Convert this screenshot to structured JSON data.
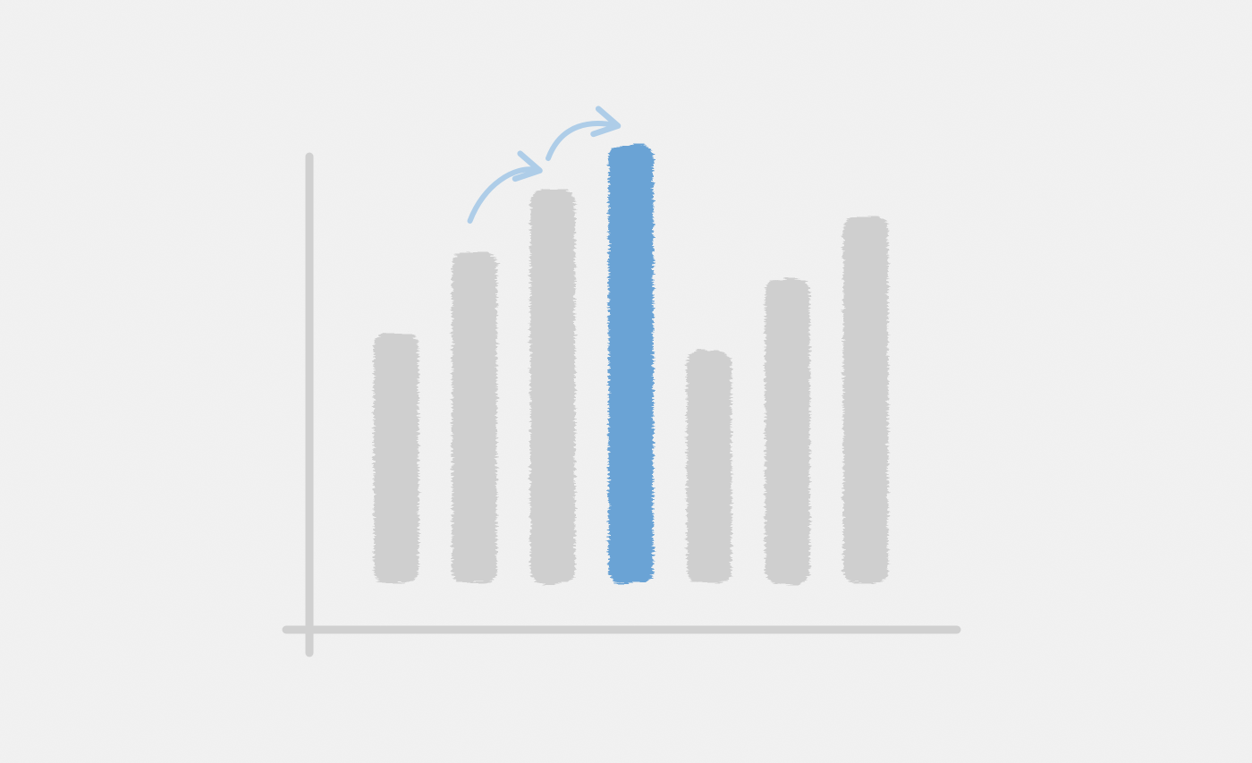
{
  "chart_data": {
    "type": "bar",
    "style": "hand-painted brush strokes on textured paper",
    "categories": [
      "",
      "",
      "",
      "",
      "",
      "",
      ""
    ],
    "values": [
      56,
      74,
      88,
      98,
      52,
      68,
      82
    ],
    "highlight_index": 3,
    "ylim": [
      0,
      115
    ],
    "grid": false,
    "annotations": [
      {
        "type": "curved-arrow",
        "from_category": 1,
        "to_category": 2
      },
      {
        "type": "curved-arrow",
        "from_category": 2,
        "to_category": 3
      }
    ],
    "colors": {
      "bar": "#cfcfcf",
      "highlight": "#6aa3d5",
      "arrow": "#aecde8",
      "axis": "#d0d0d0",
      "background": "#f2f2f2"
    }
  }
}
